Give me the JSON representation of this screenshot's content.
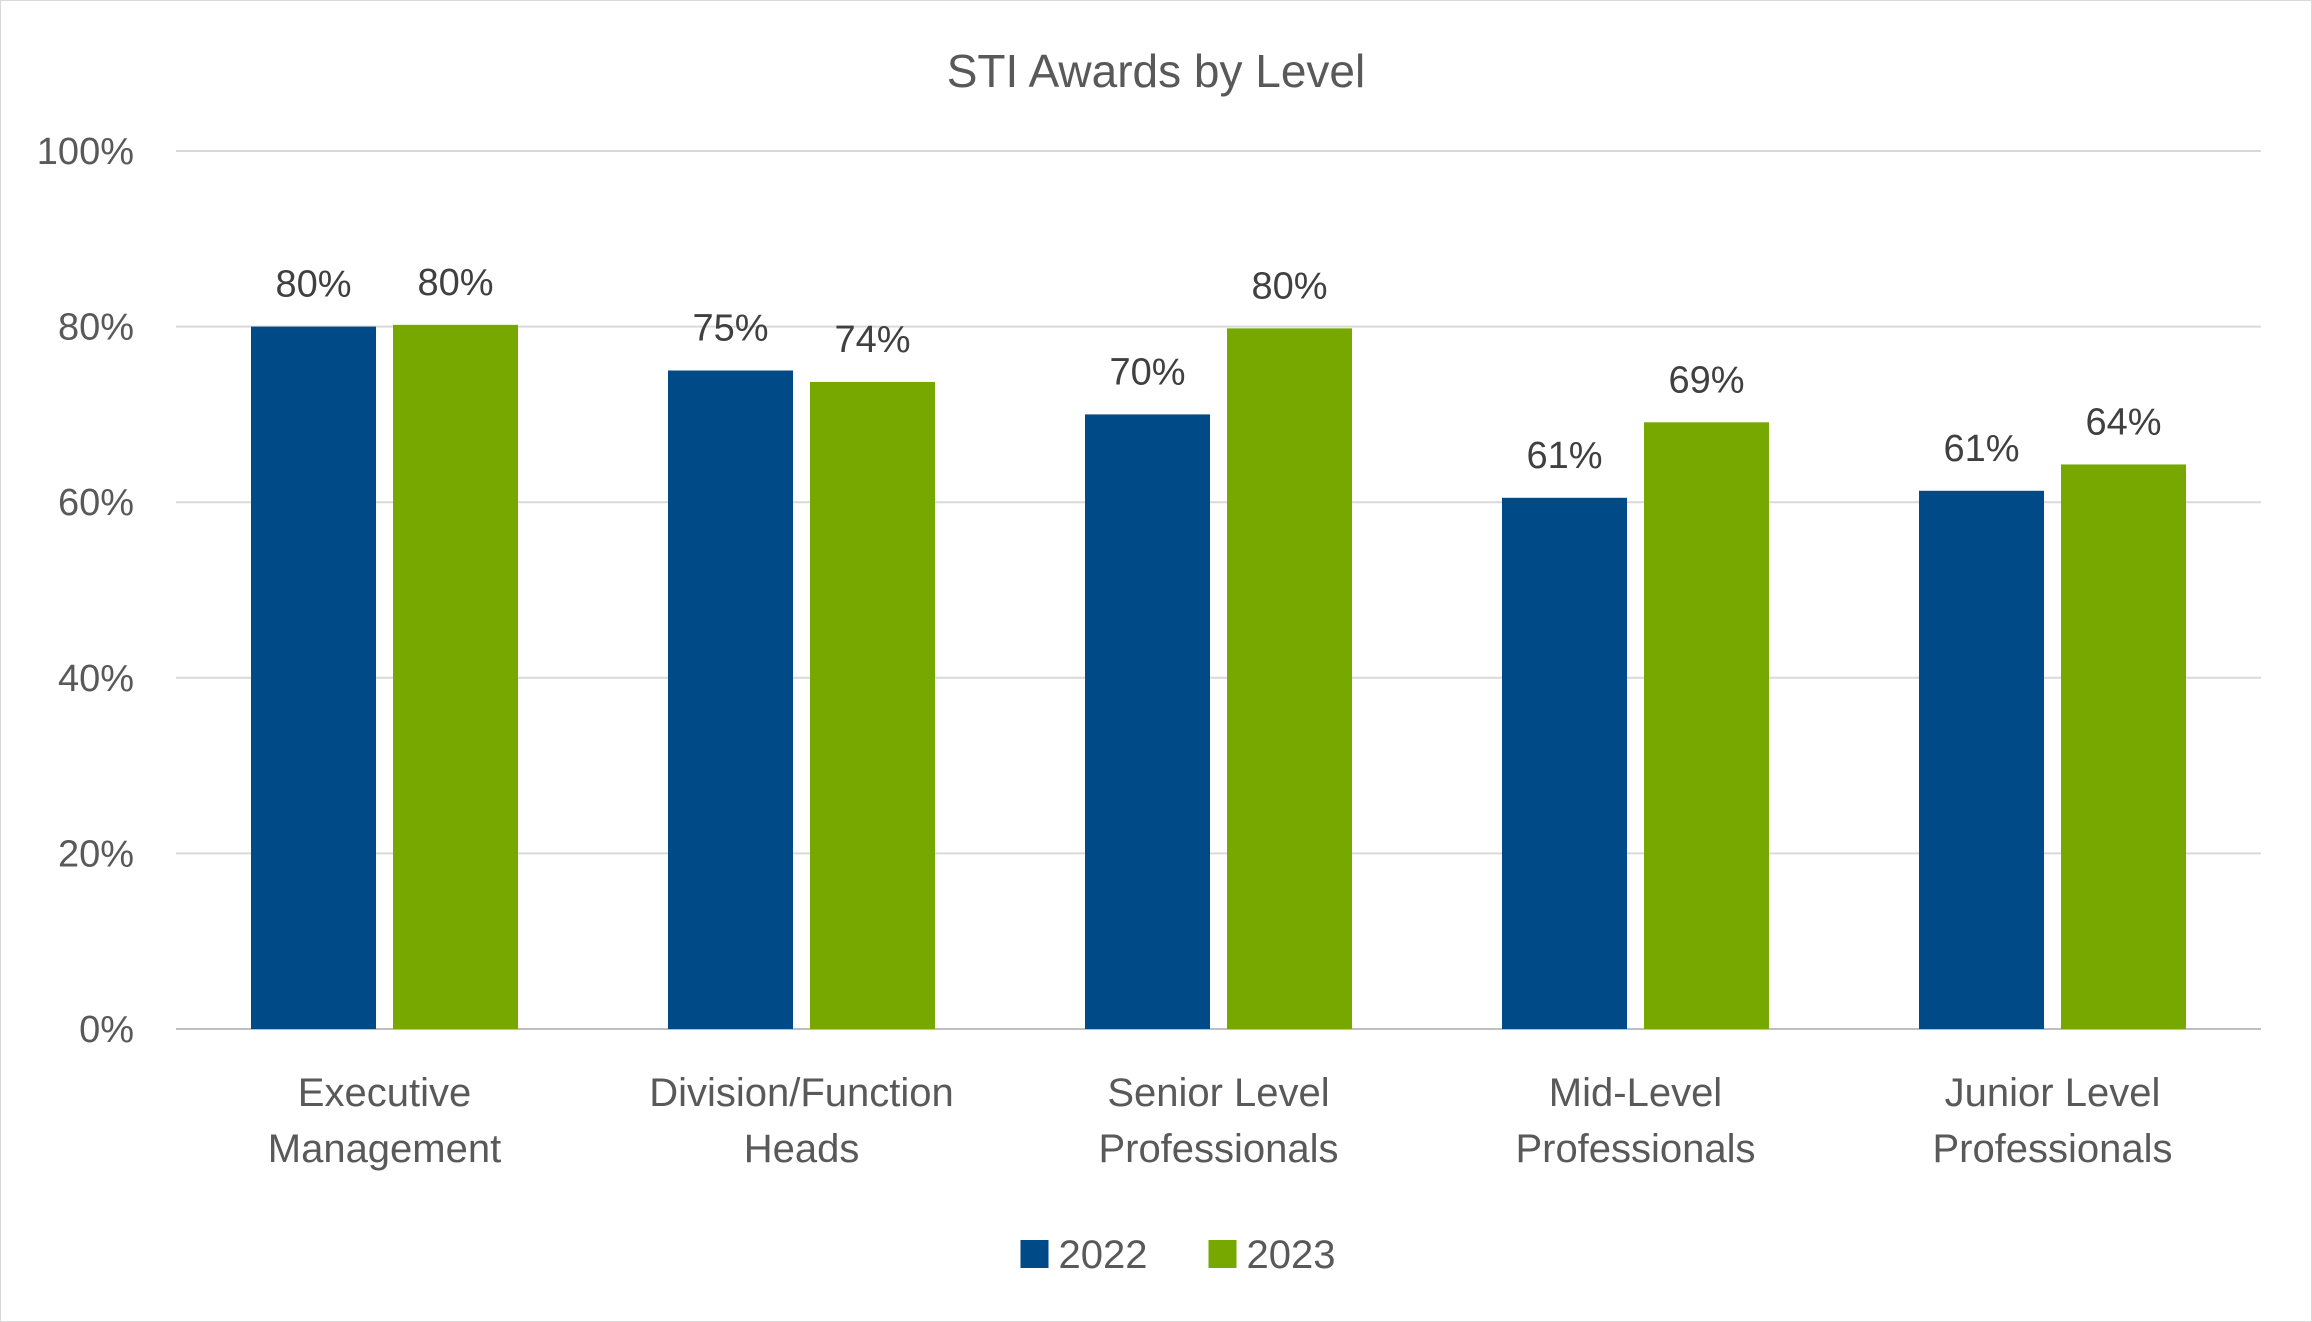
{
  "chart_data": {
    "type": "bar",
    "title": "STI Awards by Level",
    "categories": [
      [
        "Executive",
        "Management"
      ],
      [
        "Division/Function",
        "Heads"
      ],
      [
        "Senior Level",
        "Professionals"
      ],
      [
        "Mid-Level",
        "Professionals"
      ],
      [
        "Junior Level",
        "Professionals"
      ]
    ],
    "series": [
      {
        "name": "2022",
        "color": "#004B87",
        "values": [
          80,
          75,
          70,
          60.5,
          61.3
        ],
        "labels": [
          "80%",
          "75%",
          "70%",
          "61%",
          "61%"
        ]
      },
      {
        "name": "2023",
        "color": "#77A800",
        "values": [
          80.2,
          73.7,
          79.8,
          69.1,
          64.3
        ],
        "labels": [
          "80%",
          "74%",
          "80%",
          "69%",
          "64%"
        ]
      }
    ],
    "ylim": [
      0,
      100
    ],
    "yticks": [
      0,
      20,
      40,
      60,
      80,
      100
    ],
    "ytick_labels": [
      "0%",
      "20%",
      "40%",
      "60%",
      "80%",
      "100%"
    ],
    "grid": true,
    "legend_position": "bottom-center",
    "xlabel": "",
    "ylabel": ""
  }
}
